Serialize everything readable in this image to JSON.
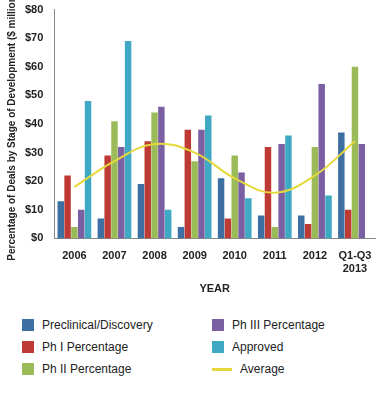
{
  "chart_data": {
    "type": "bar",
    "x_label": "YEAR",
    "y_label": "Percentage of Deals by Stage of Development ($ millions)",
    "categories": [
      "2006",
      "2007",
      "2008",
      "2009",
      "2010",
      "2011",
      "2012",
      "Q1-Q3 2013"
    ],
    "series": [
      {
        "name": "Preclinical/Discovery",
        "color": "#3d6fa3",
        "values": [
          13,
          7,
          19,
          4,
          21,
          8,
          8,
          37
        ]
      },
      {
        "name": "Ph I Percentage",
        "color": "#be3a34",
        "values": [
          22,
          29,
          34,
          38,
          7,
          32,
          5,
          10
        ]
      },
      {
        "name": "Ph II Percentage",
        "color": "#9bbb59",
        "values": [
          4,
          41,
          44,
          27,
          29,
          4,
          32,
          60
        ]
      },
      {
        "name": "Ph III Percentage",
        "color": "#7b5fa3",
        "values": [
          10,
          32,
          46,
          38,
          23,
          33,
          54,
          33
        ]
      },
      {
        "name": "Approved",
        "color": "#3fa8c2",
        "values": [
          48,
          69,
          10,
          43,
          14,
          36,
          15,
          null
        ]
      },
      {
        "name": "Average",
        "color": "#e6d83a",
        "type": "line",
        "values": [
          18,
          27,
          33,
          30,
          21,
          16,
          22,
          34
        ]
      }
    ],
    "ylim": [
      0,
      80
    ],
    "yticks": [
      {
        "value": 0,
        "label": "$0"
      },
      {
        "value": 10,
        "label": "$10"
      },
      {
        "value": 20,
        "label": "$20"
      },
      {
        "value": 30,
        "label": "$30"
      },
      {
        "value": 40,
        "label": "$40"
      },
      {
        "value": 50,
        "label": "$50"
      },
      {
        "value": 60,
        "label": "$60"
      },
      {
        "value": 70,
        "label": "$70"
      },
      {
        "value": 80,
        "label": "$80"
      }
    ],
    "grid": false,
    "legend": "bottom"
  }
}
